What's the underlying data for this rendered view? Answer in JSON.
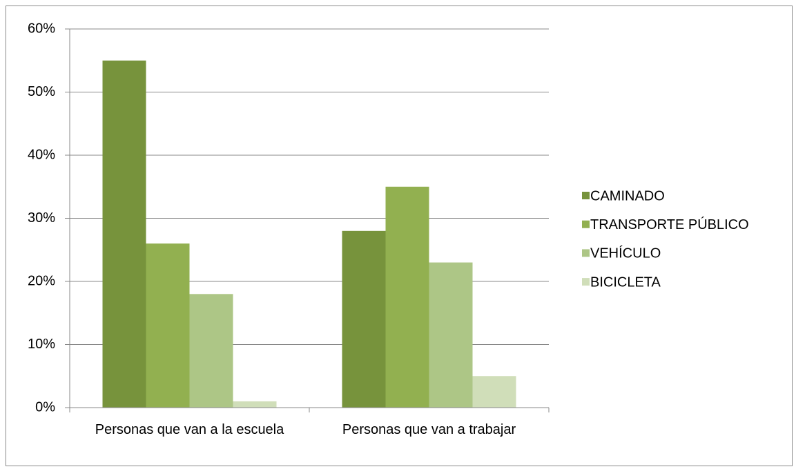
{
  "chart_data": {
    "type": "bar",
    "categories": [
      "Personas que van a la escuela",
      "Personas que van a trabajar"
    ],
    "series": [
      {
        "name": "CAMINADO",
        "color": "#77933c",
        "values": [
          55,
          28
        ]
      },
      {
        "name": "TRANSPORTE PÚBLICO",
        "color": "#92b050",
        "values": [
          26,
          35
        ]
      },
      {
        "name": "VEHÍCULO",
        "color": "#adc686",
        "values": [
          18,
          23
        ]
      },
      {
        "name": "BICICLETA",
        "color": "#d0deb9",
        "values": [
          1,
          5
        ]
      }
    ],
    "ylim": [
      0,
      60
    ],
    "yticks": [
      {
        "value": 0,
        "label": "0%"
      },
      {
        "value": 10,
        "label": "10%"
      },
      {
        "value": 20,
        "label": "20%"
      },
      {
        "value": 30,
        "label": "30%"
      },
      {
        "value": 40,
        "label": "40%"
      },
      {
        "value": 50,
        "label": "50%"
      },
      {
        "value": 60,
        "label": "60%"
      }
    ],
    "grid": true,
    "legend": "right"
  }
}
